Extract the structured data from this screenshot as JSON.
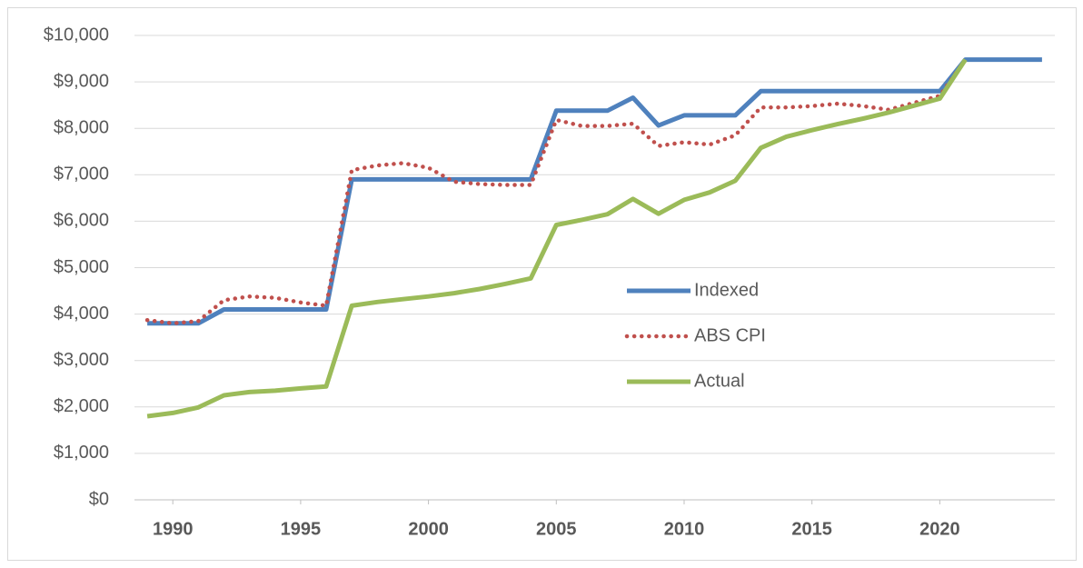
{
  "chart_data": {
    "type": "line",
    "x": [
      1989,
      1990,
      1991,
      1992,
      1993,
      1994,
      1995,
      1996,
      1997,
      1998,
      1999,
      2000,
      2001,
      2002,
      2003,
      2004,
      2005,
      2006,
      2007,
      2008,
      2009,
      2010,
      2011,
      2012,
      2013,
      2014,
      2015,
      2016,
      2017,
      2018,
      2019,
      2020,
      2021,
      2022,
      2023,
      2024
    ],
    "series": [
      {
        "name": "Indexed",
        "color": "#4f81bd",
        "line_style": "solid",
        "values": [
          3800,
          3800,
          3800,
          4100,
          4100,
          4100,
          4100,
          4100,
          6900,
          6900,
          6900,
          6900,
          6900,
          6900,
          6900,
          6900,
          8380,
          8380,
          8380,
          8660,
          8060,
          8280,
          8280,
          8280,
          8800,
          8800,
          8800,
          8800,
          8800,
          8800,
          8800,
          8800,
          9480,
          9480,
          9480,
          9480
        ]
      },
      {
        "name": "ABS CPI",
        "color": "#c0504d",
        "line_style": "dotted",
        "values": [
          3870,
          3800,
          3850,
          4300,
          4380,
          4350,
          4250,
          4180,
          7100,
          7200,
          7250,
          7150,
          6850,
          6800,
          6780,
          6780,
          8180,
          8050,
          8050,
          8100,
          7620,
          7700,
          7650,
          7850,
          8450,
          8450,
          8480,
          8530,
          8480,
          8400,
          8550,
          8700,
          9480,
          null,
          null,
          null
        ]
      },
      {
        "name": "Actual",
        "color": "#9bbb59",
        "line_style": "solid",
        "values": [
          1800,
          1870,
          1990,
          2250,
          2320,
          2350,
          2400,
          2440,
          4180,
          4260,
          4320,
          4380,
          4450,
          4540,
          4650,
          4770,
          5920,
          6030,
          6150,
          6480,
          6160,
          6460,
          6620,
          6870,
          7580,
          7820,
          7960,
          8090,
          8210,
          8340,
          8490,
          8640,
          9480,
          null,
          null,
          null
        ]
      }
    ],
    "xlim": [
      1988.5,
      2024.5
    ],
    "xticks": [
      1990,
      1995,
      2000,
      2005,
      2010,
      2015,
      2020
    ],
    "ylim": [
      0,
      10000
    ],
    "yticks": [
      {
        "value": 0,
        "label": "$0"
      },
      {
        "value": 1000,
        "label": "$1,000"
      },
      {
        "value": 2000,
        "label": "$2,000"
      },
      {
        "value": 3000,
        "label": "$3,000"
      },
      {
        "value": 4000,
        "label": "$4,000"
      },
      {
        "value": 5000,
        "label": "$5,000"
      },
      {
        "value": 6000,
        "label": "$6,000"
      },
      {
        "value": 7000,
        "label": "$7,000"
      },
      {
        "value": 8000,
        "label": "$8,000"
      },
      {
        "value": 9000,
        "label": "$9,000"
      },
      {
        "value": 10000,
        "label": "$10,000"
      }
    ],
    "grid": true,
    "legend": "center"
  }
}
